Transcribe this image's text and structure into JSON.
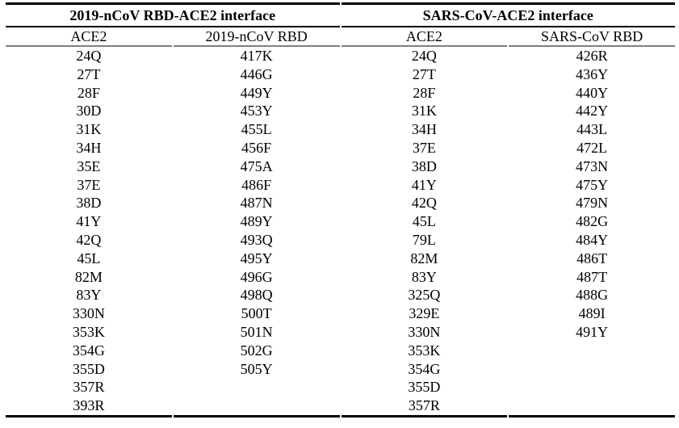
{
  "page": {
    "background": "#ffffff",
    "text_color": "#000000"
  },
  "table": {
    "group_headers": [
      {
        "label": "2019-nCoV RBD-ACE2 interface"
      },
      {
        "label": "SARS-CoV-ACE2 interface"
      }
    ],
    "column_headers": [
      "ACE2",
      "2019-nCoV RBD",
      "ACE2",
      "SARS-CoV RBD"
    ],
    "columns": {
      "ncov_ace2_residues": [
        "24Q",
        "27T",
        "28F",
        "30D",
        "31K",
        "34H",
        "35E",
        "37E",
        "38D",
        "41Y",
        "42Q",
        "45L",
        "82M",
        "83Y",
        "330N",
        "353K",
        "354G",
        "355D",
        "357R",
        "393R"
      ],
      "ncov_rbd_residues": [
        "417K",
        "446G",
        "449Y",
        "453Y",
        "455L",
        "456F",
        "475A",
        "486F",
        "487N",
        "489Y",
        "493Q",
        "495Y",
        "496G",
        "498Q",
        "500T",
        "501N",
        "502G",
        "505Y"
      ],
      "sars_ace2_residues": [
        "24Q",
        "27T",
        "28F",
        "31K",
        "34H",
        "37E",
        "38D",
        "41Y",
        "42Q",
        "45L",
        "79L",
        "82M",
        "83Y",
        "325Q",
        "329E",
        "330N",
        "353K",
        "354G",
        "355D",
        "357R"
      ],
      "sars_rbd_residues": [
        "426R",
        "436Y",
        "440Y",
        "442Y",
        "443L",
        "472L",
        "473N",
        "475Y",
        "479N",
        "482G",
        "484Y",
        "486T",
        "487T",
        "488G",
        "489I",
        "491Y"
      ]
    },
    "rows": [
      [
        "24Q",
        "417K",
        "24Q",
        "426R"
      ],
      [
        "27T",
        "446G",
        "27T",
        "436Y"
      ],
      [
        "28F",
        "449Y",
        "28F",
        "440Y"
      ],
      [
        "30D",
        "453Y",
        "31K",
        "442Y"
      ],
      [
        "31K",
        "455L",
        "34H",
        "443L"
      ],
      [
        "34H",
        "456F",
        "37E",
        "472L"
      ],
      [
        "35E",
        "475A",
        "38D",
        "473N"
      ],
      [
        "37E",
        "486F",
        "41Y",
        "475Y"
      ],
      [
        "38D",
        "487N",
        "42Q",
        "479N"
      ],
      [
        "41Y",
        "489Y",
        "45L",
        "482G"
      ],
      [
        "42Q",
        "493Q",
        "79L",
        "484Y"
      ],
      [
        "45L",
        "495Y",
        "82M",
        "486T"
      ],
      [
        "82M",
        "496G",
        "83Y",
        "487T"
      ],
      [
        "83Y",
        "498Q",
        "325Q",
        "488G"
      ],
      [
        "330N",
        "500T",
        "329E",
        "489I"
      ],
      [
        "353K",
        "501N",
        "330N",
        "491Y"
      ],
      [
        "354G",
        "502G",
        "353K",
        ""
      ],
      [
        "355D",
        "505Y",
        "354G",
        ""
      ],
      [
        "357R",
        "",
        "355D",
        ""
      ],
      [
        "393R",
        "",
        "357R",
        ""
      ]
    ],
    "colors": {
      "outer_border": "#000000",
      "group_header_rule": "#000000",
      "column_header_rule": "#7f7f7f"
    }
  }
}
